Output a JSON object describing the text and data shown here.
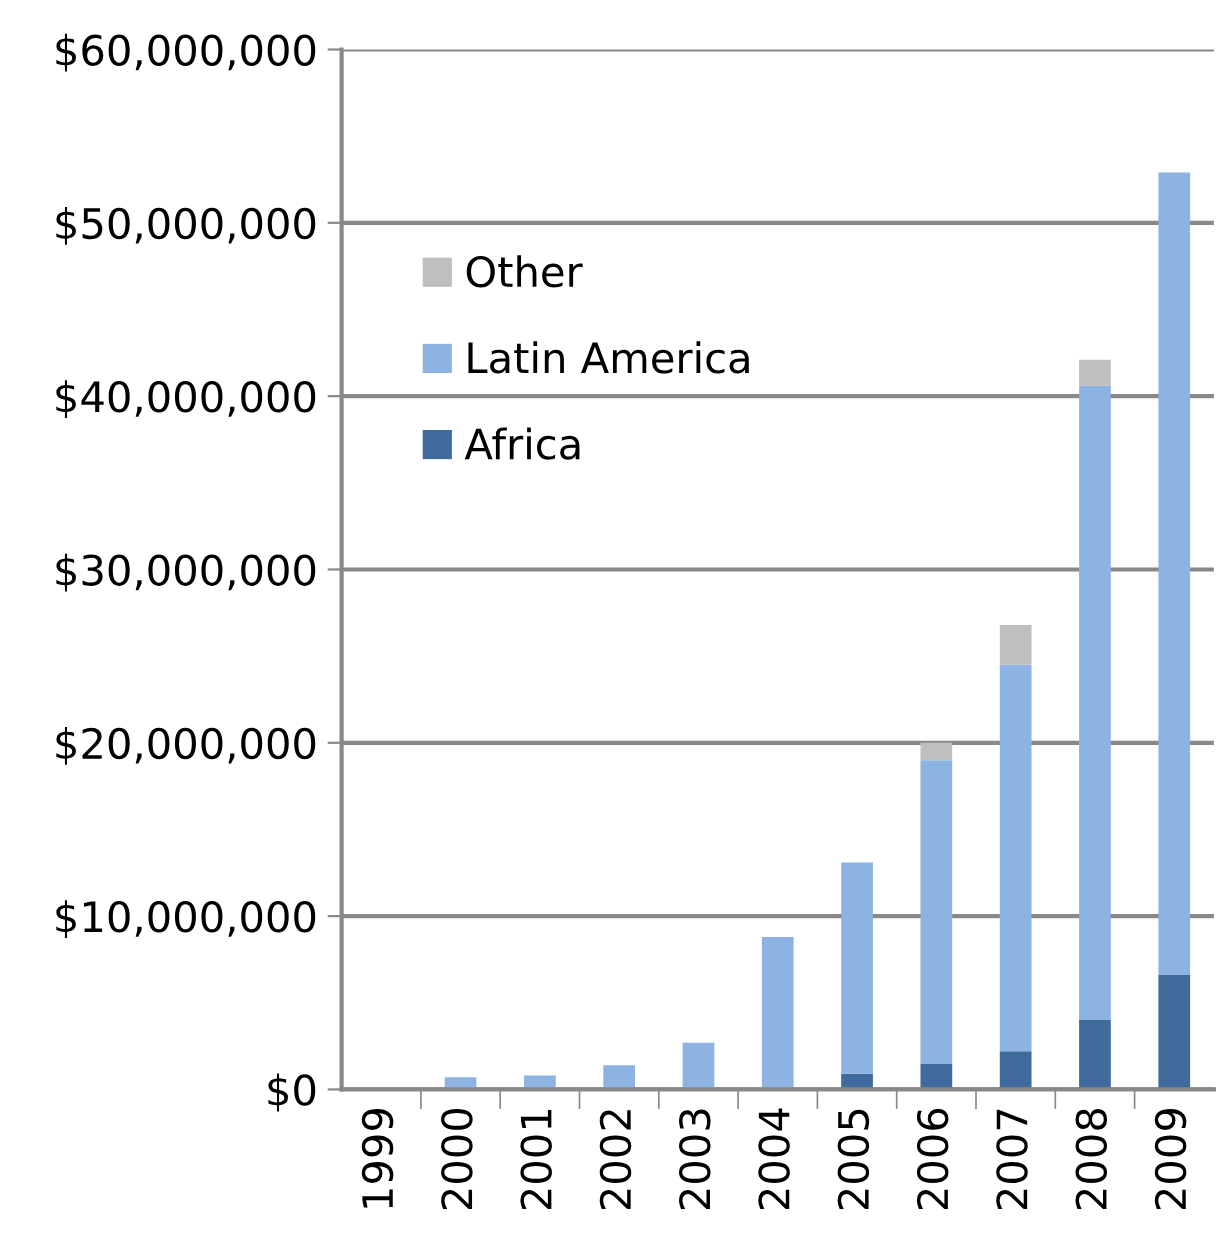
{
  "chart_data": {
    "type": "bar",
    "stacked": true,
    "categories": [
      "1999",
      "2000",
      "2001",
      "2002",
      "2003",
      "2004",
      "2005",
      "2006",
      "2007",
      "2008",
      "2009"
    ],
    "series": [
      {
        "name": "Africa",
        "color": "#3f6a9c",
        "values": [
          0,
          0,
          0,
          0,
          0,
          0,
          900000,
          1500000,
          2200000,
          4000000,
          6600000
        ]
      },
      {
        "name": "Latin America",
        "color": "#8db3e2",
        "values": [
          0,
          700000,
          800000,
          1400000,
          2700000,
          8800000,
          12200000,
          17500000,
          22300000,
          36600000,
          46300000
        ]
      },
      {
        "name": "Other",
        "color": "#bfbfbf",
        "values": [
          0,
          0,
          0,
          0,
          0,
          0,
          0,
          1000000,
          2300000,
          1500000,
          0
        ]
      }
    ],
    "ylim": [
      0,
      60000000
    ],
    "yticks": [
      {
        "value": 0,
        "label": "$0"
      },
      {
        "value": 10000000,
        "label": "$10,000,000"
      },
      {
        "value": 20000000,
        "label": "$20,000,000"
      },
      {
        "value": 30000000,
        "label": "$30,000,000"
      },
      {
        "value": 40000000,
        "label": "$40,000,000"
      },
      {
        "value": 50000000,
        "label": "$50,000,000"
      },
      {
        "value": 60000000,
        "label": "$60,000,000"
      }
    ],
    "grid": "y",
    "legend": "center left"
  }
}
